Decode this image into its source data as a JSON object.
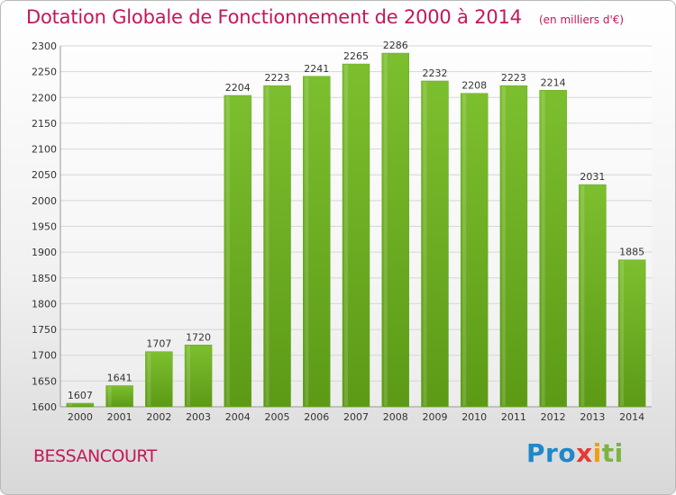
{
  "chart_data": {
    "type": "bar",
    "title": "Dotation Globale de Fonctionnement de 2000 à 2014",
    "subtitle": "(en milliers d'€)",
    "categories": [
      "2000",
      "2001",
      "2002",
      "2003",
      "2004",
      "2005",
      "2006",
      "2007",
      "2008",
      "2009",
      "2010",
      "2011",
      "2012",
      "2013",
      "2014"
    ],
    "values": [
      1607,
      1641,
      1707,
      1720,
      2204,
      2223,
      2241,
      2265,
      2286,
      2232,
      2208,
      2223,
      2214,
      2031,
      1885
    ],
    "xlabel": "",
    "ylabel": "",
    "ylim": [
      1600,
      2300
    ],
    "yticks": [
      1600,
      1650,
      1700,
      1750,
      1800,
      1850,
      1900,
      1950,
      2000,
      2050,
      2100,
      2150,
      2200,
      2250,
      2300
    ],
    "grid": true,
    "legend": "none",
    "bar_color": "#7cbf2e",
    "bar_color_dark": "#5c9a16"
  },
  "footer": {
    "commune": "BESSANCOURT",
    "logo_parts": [
      "Pro",
      "x",
      "i",
      "ti"
    ]
  },
  "colors": {
    "title": "#c2185b",
    "grid": "#d6d6d6"
  }
}
